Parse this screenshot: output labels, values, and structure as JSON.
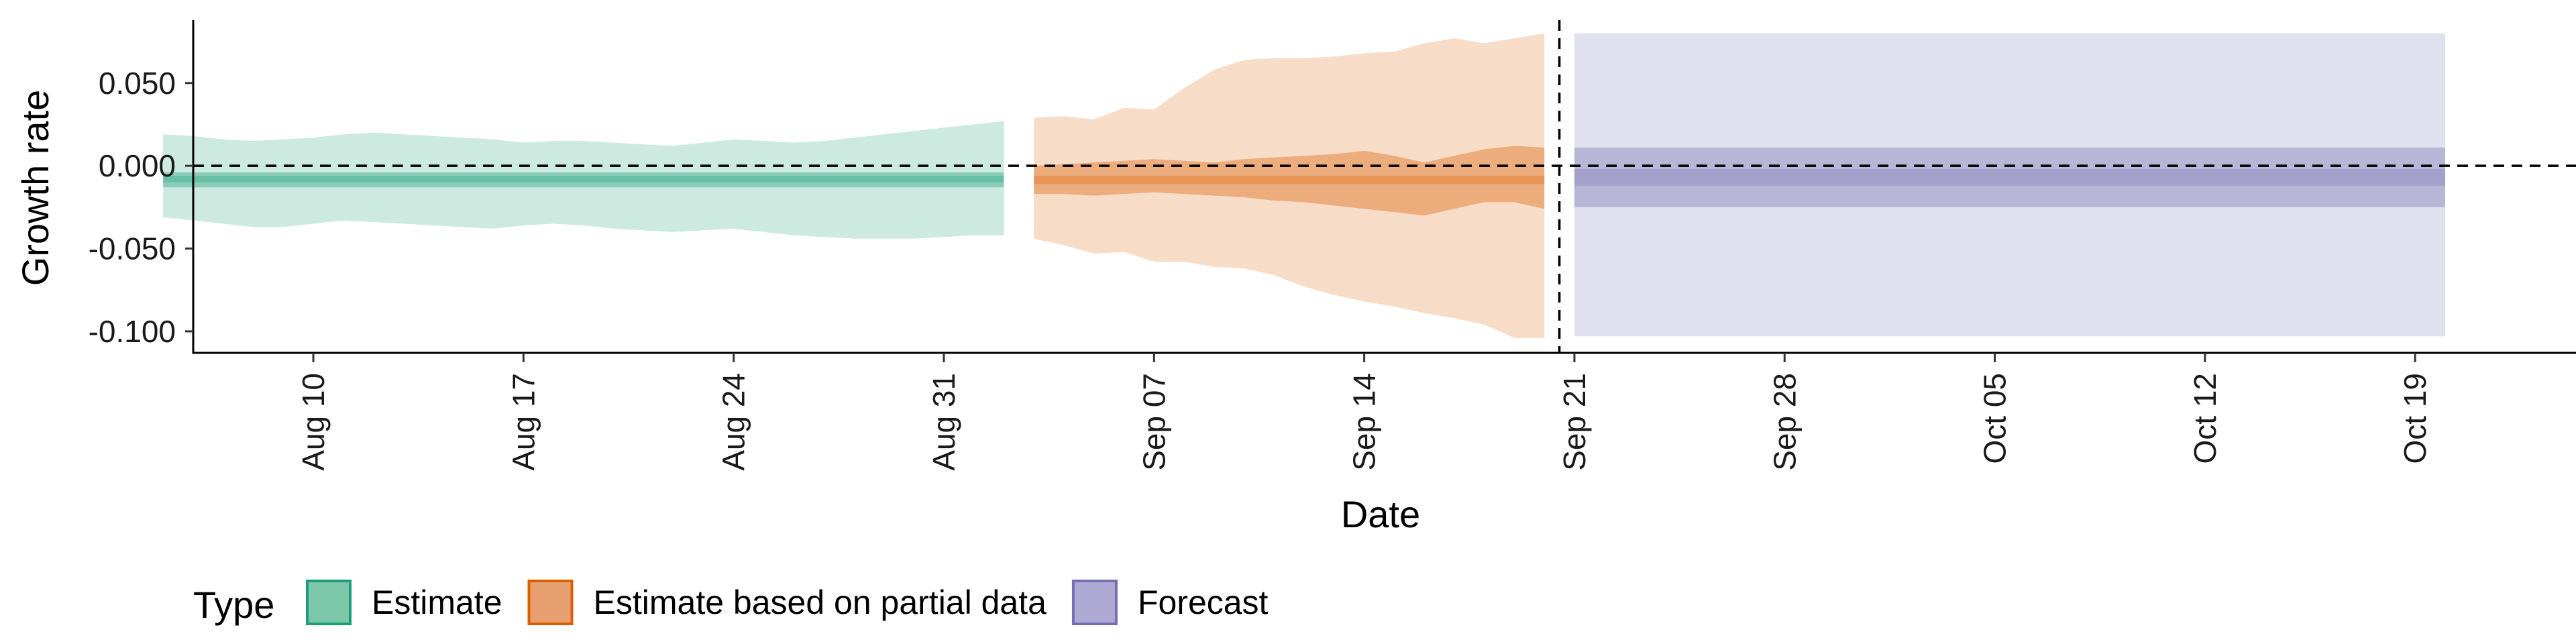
{
  "chart_data": {
    "type": "area",
    "xlabel": "Date",
    "ylabel": "Growth rate",
    "xlim": [
      "2020-08-06",
      "2020-10-24"
    ],
    "ylim": [
      -0.113,
      0.088
    ],
    "x_ticks": [
      "2020-08-10",
      "2020-08-17",
      "2020-08-24",
      "2020-08-31",
      "2020-09-07",
      "2020-09-14",
      "2020-09-21",
      "2020-09-28",
      "2020-10-05",
      "2020-10-12",
      "2020-10-19"
    ],
    "x_tick_labels": [
      "Aug 10",
      "Aug 17",
      "Aug 24",
      "Aug 31",
      "Sep 07",
      "Sep 14",
      "Sep 21",
      "Sep 28",
      "Oct 05",
      "Oct 12",
      "Oct 19"
    ],
    "y_ticks": [
      0.05,
      0.0,
      -0.05,
      -0.1
    ],
    "y_tick_labels": [
      "0.050",
      "0.000",
      "-0.050",
      "-0.100"
    ],
    "reference_lines": {
      "horizontal_y": 0.0,
      "vertical_x": "2020-09-20"
    },
    "legend": {
      "title": "Type",
      "position": "bottom",
      "entries": [
        {
          "label": "Estimate",
          "fill": "#7cc7aa",
          "stroke": "#1b9e77"
        },
        {
          "label": "Estimate based on partial data",
          "fill": "#e9a070",
          "stroke": "#d95f02"
        },
        {
          "label": "Forecast",
          "fill": "#aeaad3",
          "stroke": "#7570b3"
        }
      ]
    },
    "series": [
      {
        "name": "Estimate",
        "color": "#1b9e77",
        "x": [
          "2020-08-05",
          "2020-08-06",
          "2020-08-07",
          "2020-08-08",
          "2020-08-09",
          "2020-08-10",
          "2020-08-11",
          "2020-08-12",
          "2020-08-13",
          "2020-08-14",
          "2020-08-15",
          "2020-08-16",
          "2020-08-17",
          "2020-08-18",
          "2020-08-19",
          "2020-08-20",
          "2020-08-21",
          "2020-08-22",
          "2020-08-23",
          "2020-08-24",
          "2020-08-25",
          "2020-08-26",
          "2020-08-27",
          "2020-08-28",
          "2020-08-29",
          "2020-08-30",
          "2020-08-31",
          "2020-09-01",
          "2020-09-02"
        ],
        "outer_upper": [
          0.019,
          0.018,
          0.016,
          0.015,
          0.016,
          0.017,
          0.019,
          0.02,
          0.019,
          0.018,
          0.017,
          0.016,
          0.014,
          0.015,
          0.015,
          0.014,
          0.013,
          0.012,
          0.014,
          0.016,
          0.015,
          0.014,
          0.015,
          0.017,
          0.019,
          0.021,
          0.023,
          0.025,
          0.027
        ],
        "inner_upper": [
          -0.004,
          -0.004,
          -0.004,
          -0.004,
          -0.004,
          -0.004,
          -0.004,
          -0.004,
          -0.004,
          -0.004,
          -0.004,
          -0.004,
          -0.004,
          -0.004,
          -0.004,
          -0.004,
          -0.004,
          -0.004,
          -0.004,
          -0.004,
          -0.004,
          -0.004,
          -0.004,
          -0.004,
          -0.004,
          -0.004,
          -0.004,
          -0.004,
          -0.004
        ],
        "inner_lower": [
          -0.013,
          -0.013,
          -0.013,
          -0.013,
          -0.013,
          -0.013,
          -0.013,
          -0.013,
          -0.013,
          -0.013,
          -0.013,
          -0.013,
          -0.013,
          -0.013,
          -0.013,
          -0.013,
          -0.013,
          -0.013,
          -0.013,
          -0.013,
          -0.013,
          -0.013,
          -0.013,
          -0.013,
          -0.013,
          -0.013,
          -0.013,
          -0.013,
          -0.013
        ],
        "outer_lower": [
          -0.031,
          -0.033,
          -0.035,
          -0.037,
          -0.037,
          -0.035,
          -0.033,
          -0.034,
          -0.035,
          -0.036,
          -0.037,
          -0.038,
          -0.036,
          -0.035,
          -0.036,
          -0.038,
          -0.039,
          -0.04,
          -0.039,
          -0.038,
          -0.04,
          -0.042,
          -0.043,
          -0.044,
          -0.044,
          -0.044,
          -0.043,
          -0.042,
          -0.042
        ],
        "core_upper": [
          -0.006,
          -0.006,
          -0.006,
          -0.006,
          -0.006,
          -0.006,
          -0.006,
          -0.006,
          -0.006,
          -0.006,
          -0.006,
          -0.006,
          -0.006,
          -0.006,
          -0.006,
          -0.006,
          -0.006,
          -0.006,
          -0.006,
          -0.006,
          -0.006,
          -0.006,
          -0.006,
          -0.006,
          -0.006,
          -0.006,
          -0.006,
          -0.006,
          -0.006
        ],
        "core_lower": [
          -0.01,
          -0.01,
          -0.01,
          -0.01,
          -0.01,
          -0.01,
          -0.01,
          -0.01,
          -0.01,
          -0.01,
          -0.01,
          -0.01,
          -0.01,
          -0.01,
          -0.01,
          -0.01,
          -0.01,
          -0.01,
          -0.01,
          -0.01,
          -0.01,
          -0.01,
          -0.01,
          -0.01,
          -0.01,
          -0.01,
          -0.01,
          -0.01,
          -0.01
        ]
      },
      {
        "name": "Estimate based on partial data",
        "color": "#d95f02",
        "x": [
          "2020-09-03",
          "2020-09-04",
          "2020-09-05",
          "2020-09-06",
          "2020-09-07",
          "2020-09-08",
          "2020-09-09",
          "2020-09-10",
          "2020-09-11",
          "2020-09-12",
          "2020-09-13",
          "2020-09-14",
          "2020-09-15",
          "2020-09-16",
          "2020-09-17",
          "2020-09-18",
          "2020-09-19",
          "2020-09-20"
        ],
        "outer_upper": [
          0.029,
          0.03,
          0.028,
          0.035,
          0.034,
          0.047,
          0.058,
          0.064,
          0.065,
          0.065,
          0.066,
          0.068,
          0.069,
          0.074,
          0.077,
          0.074,
          0.077,
          0.08
        ],
        "inner_upper": [
          0.0,
          0.001,
          0.002,
          0.003,
          0.004,
          0.003,
          0.002,
          0.004,
          0.005,
          0.006,
          0.007,
          0.009,
          0.006,
          0.002,
          0.006,
          0.01,
          0.012,
          0.011
        ],
        "inner_lower": [
          -0.017,
          -0.017,
          -0.018,
          -0.017,
          -0.016,
          -0.017,
          -0.018,
          -0.019,
          -0.021,
          -0.022,
          -0.024,
          -0.026,
          -0.028,
          -0.03,
          -0.026,
          -0.022,
          -0.022,
          -0.026
        ],
        "outer_lower": [
          -0.044,
          -0.048,
          -0.053,
          -0.052,
          -0.058,
          -0.058,
          -0.061,
          -0.062,
          -0.066,
          -0.073,
          -0.078,
          -0.082,
          -0.085,
          -0.089,
          -0.092,
          -0.096,
          -0.104,
          -0.104
        ],
        "core_upper": [
          -0.006,
          -0.006,
          -0.006,
          -0.006,
          -0.006,
          -0.006,
          -0.006,
          -0.006,
          -0.006,
          -0.006,
          -0.006,
          -0.006,
          -0.006,
          -0.006,
          -0.006,
          -0.006,
          -0.006,
          -0.006
        ],
        "core_lower": [
          -0.011,
          -0.011,
          -0.011,
          -0.011,
          -0.011,
          -0.011,
          -0.011,
          -0.011,
          -0.011,
          -0.011,
          -0.011,
          -0.011,
          -0.011,
          -0.011,
          -0.011,
          -0.011,
          -0.011,
          -0.011
        ]
      },
      {
        "name": "Forecast",
        "color": "#7570b3",
        "x": [
          "2020-09-21",
          "2020-10-20"
        ],
        "outer_upper": [
          0.08,
          0.08
        ],
        "inner_upper": [
          0.011,
          0.011
        ],
        "inner_lower": [
          -0.025,
          -0.025
        ],
        "outer_lower": [
          -0.103,
          -0.103
        ],
        "core_upper": [
          -0.002,
          -0.002
        ],
        "core_lower": [
          -0.012,
          -0.012
        ]
      }
    ]
  }
}
